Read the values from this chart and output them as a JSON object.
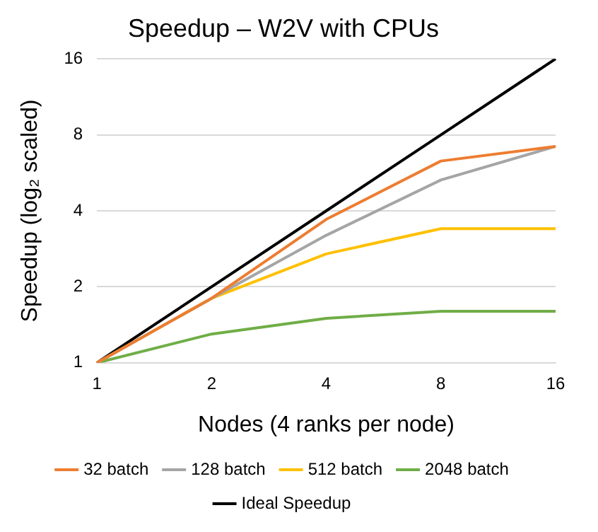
{
  "chart_data": {
    "type": "line",
    "title": "Speedup – W2V with CPUs",
    "xlabel": "Nodes (4 ranks per node)",
    "ylabel": "Speedup (log₂ scaled)",
    "categories": [
      "1",
      "2",
      "4",
      "8",
      "16"
    ],
    "series": [
      {
        "name": "32 batch",
        "color": "#ed7d31",
        "values": [
          1,
          1.8,
          3.7,
          6.3,
          7.2
        ]
      },
      {
        "name": "128 batch",
        "color": "#a5a5a5",
        "values": [
          1,
          1.8,
          3.2,
          5.3,
          7.2
        ]
      },
      {
        "name": "512 batch",
        "color": "#ffc000",
        "values": [
          1,
          1.8,
          2.7,
          3.4,
          3.4
        ]
      },
      {
        "name": "2048 batch",
        "color": "#70ad47",
        "values": [
          1,
          1.3,
          1.5,
          1.6,
          1.6
        ]
      },
      {
        "name": "Ideal Speedup",
        "color": "#000000",
        "values": [
          1,
          2,
          4,
          8,
          16
        ]
      }
    ],
    "log": "y",
    "ylim": [
      1,
      16
    ],
    "yticks": [
      1,
      2,
      4,
      8,
      16
    ],
    "grid": "y",
    "legend": "bottom",
    "marker": "none",
    "line_style": "solid"
  }
}
